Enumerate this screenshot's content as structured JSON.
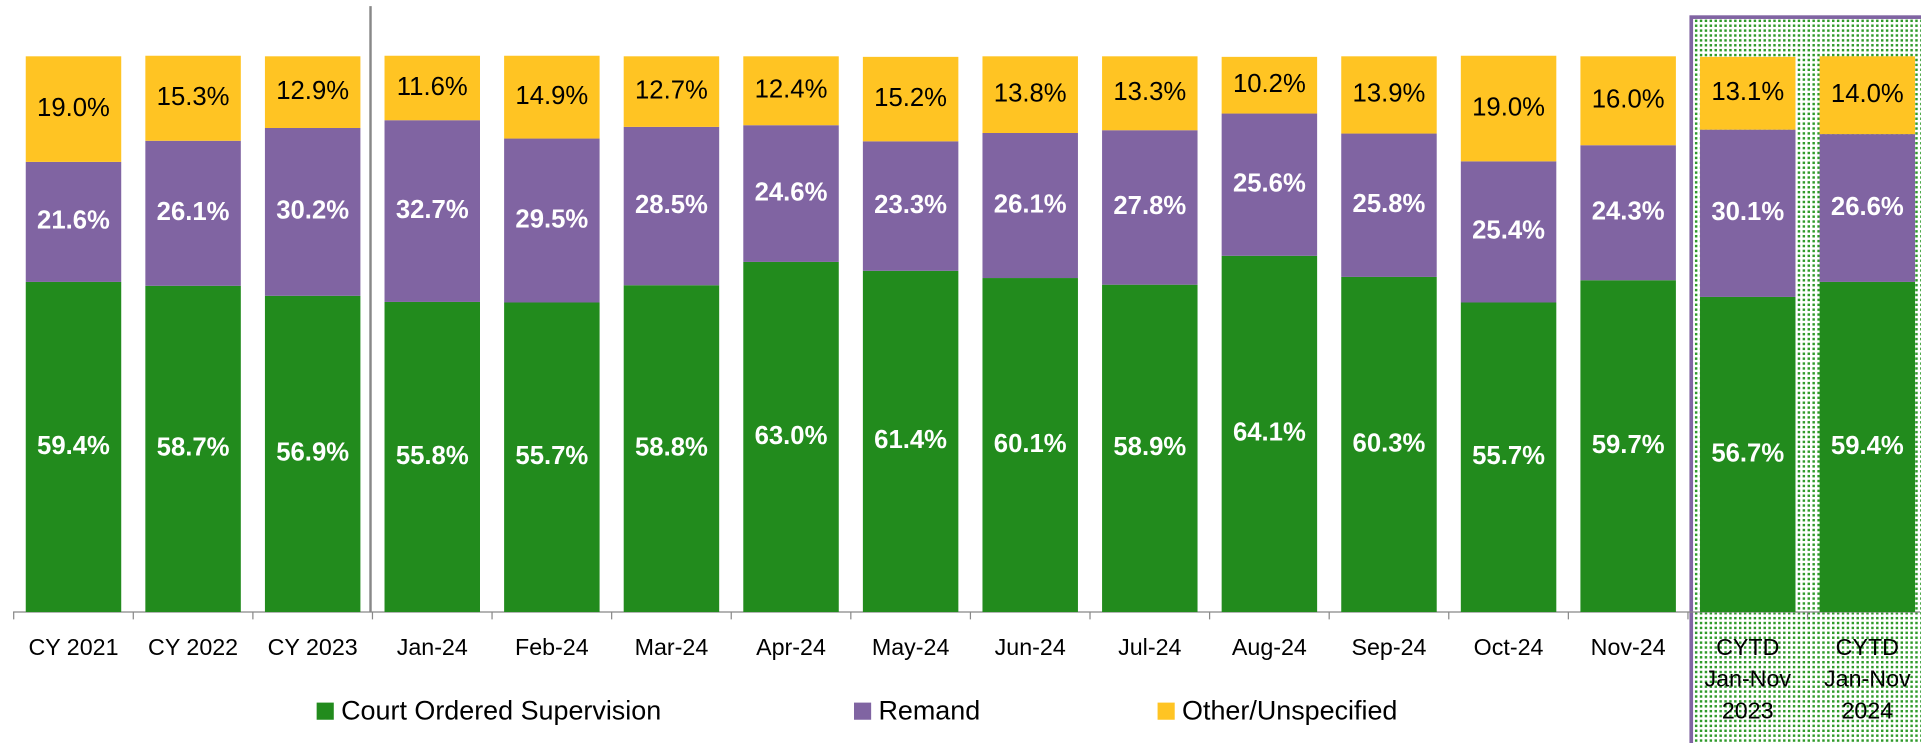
{
  "chart_data": {
    "type": "stacked_bar_100",
    "categories": [
      "CY 2021",
      "CY 2022",
      "CY 2023",
      "Jan-24",
      "Feb-24",
      "Mar-24",
      "Apr-24",
      "May-24",
      "Jun-24",
      "Jul-24",
      "Aug-24",
      "Sep-24",
      "Oct-24",
      "Nov-24",
      [
        "CYTD",
        "Jan-Nov",
        "2023"
      ],
      [
        "CYTD",
        "Jan-Nov",
        "2024"
      ]
    ],
    "ylim": [
      0,
      100
    ],
    "legend": "bottom",
    "series": [
      {
        "name": "Court Ordered Supervision",
        "color": "#228b1d",
        "values": [
          59.4,
          58.7,
          56.9,
          55.8,
          55.7,
          58.8,
          63.0,
          61.4,
          60.1,
          58.9,
          64.1,
          60.3,
          55.7,
          59.7,
          56.7,
          59.4
        ],
        "value_labels": [
          "59.4%",
          "58.7%",
          "56.9%",
          "55.8%",
          "55.7%",
          "58.8%",
          "63.0%",
          "61.4%",
          "60.1%",
          "58.9%",
          "64.1%",
          "60.3%",
          "55.7%",
          "59.7%",
          "56.7%",
          "59.4%"
        ]
      },
      {
        "name": "Remand",
        "color": "#8064a2",
        "values": [
          21.6,
          26.1,
          30.2,
          32.7,
          29.5,
          28.5,
          24.6,
          23.3,
          26.1,
          27.8,
          25.6,
          25.8,
          25.4,
          24.3,
          30.1,
          26.6
        ],
        "value_labels": [
          "21.6%",
          "26.1%",
          "30.2%",
          "32.7%",
          "29.5%",
          "28.5%",
          "24.6%",
          "23.3%",
          "26.1%",
          "27.8%",
          "25.6%",
          "25.8%",
          "25.4%",
          "24.3%",
          "30.1%",
          "26.6%"
        ]
      },
      {
        "name": "Other/Unspecified",
        "color": "#ffc423",
        "values": [
          19.0,
          15.3,
          12.9,
          11.6,
          14.9,
          12.7,
          12.4,
          15.2,
          13.8,
          13.3,
          10.2,
          13.9,
          19.0,
          16.0,
          13.1,
          14.0
        ],
        "value_labels": [
          "19.0%",
          "15.3%",
          "12.9%",
          "11.6%",
          "14.9%",
          "12.7%",
          "12.4%",
          "15.2%",
          "13.8%",
          "13.3%",
          "10.2%",
          "13.9%",
          "19.0%",
          "16.0%",
          "13.1%",
          "14.0%"
        ]
      }
    ]
  }
}
